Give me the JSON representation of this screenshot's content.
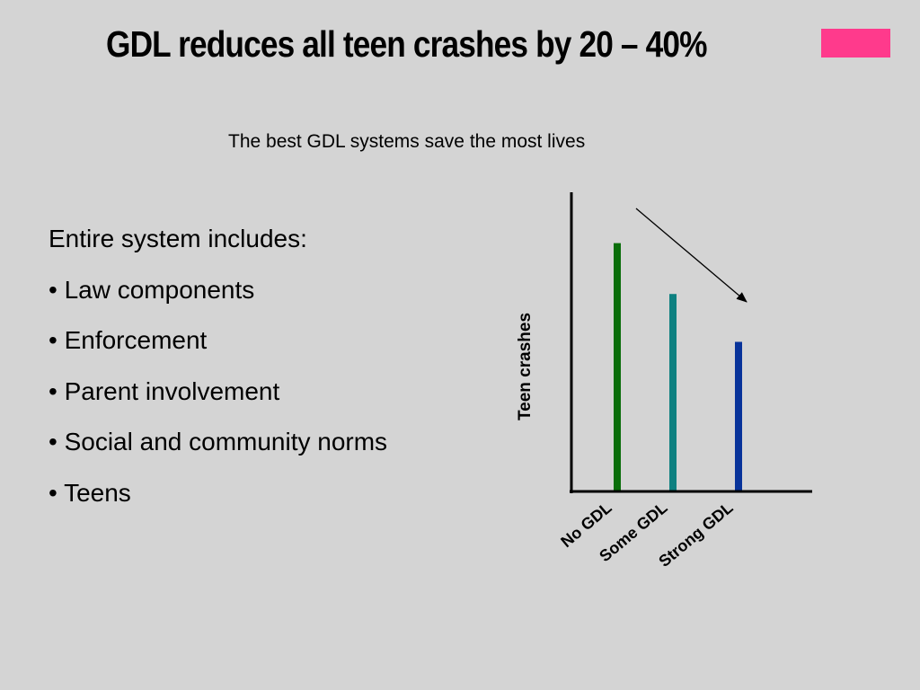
{
  "slide": {
    "title": "GDL reduces all teen crashes by 20 – 40%",
    "subtitle": "The best GDL systems save the most lives",
    "accent_color": "#ff3a8c",
    "bullets": [
      "Entire system includes:",
      "• Law components",
      "• Enforcement",
      "• Parent involvement",
      "• Social and community norms",
      "• Teens"
    ]
  },
  "chart_data": {
    "type": "bar",
    "title": "",
    "xlabel": "",
    "ylabel": "Teen crashes",
    "categories": [
      "No GDL",
      "Some GDL",
      "Strong GDL"
    ],
    "values": [
      83,
      66,
      50
    ],
    "colors": [
      "#0a6e0a",
      "#0e8080",
      "#08339a"
    ],
    "ylim": [
      0,
      100
    ],
    "grid": false,
    "legend": "none",
    "annotation": "downward trend arrow"
  }
}
